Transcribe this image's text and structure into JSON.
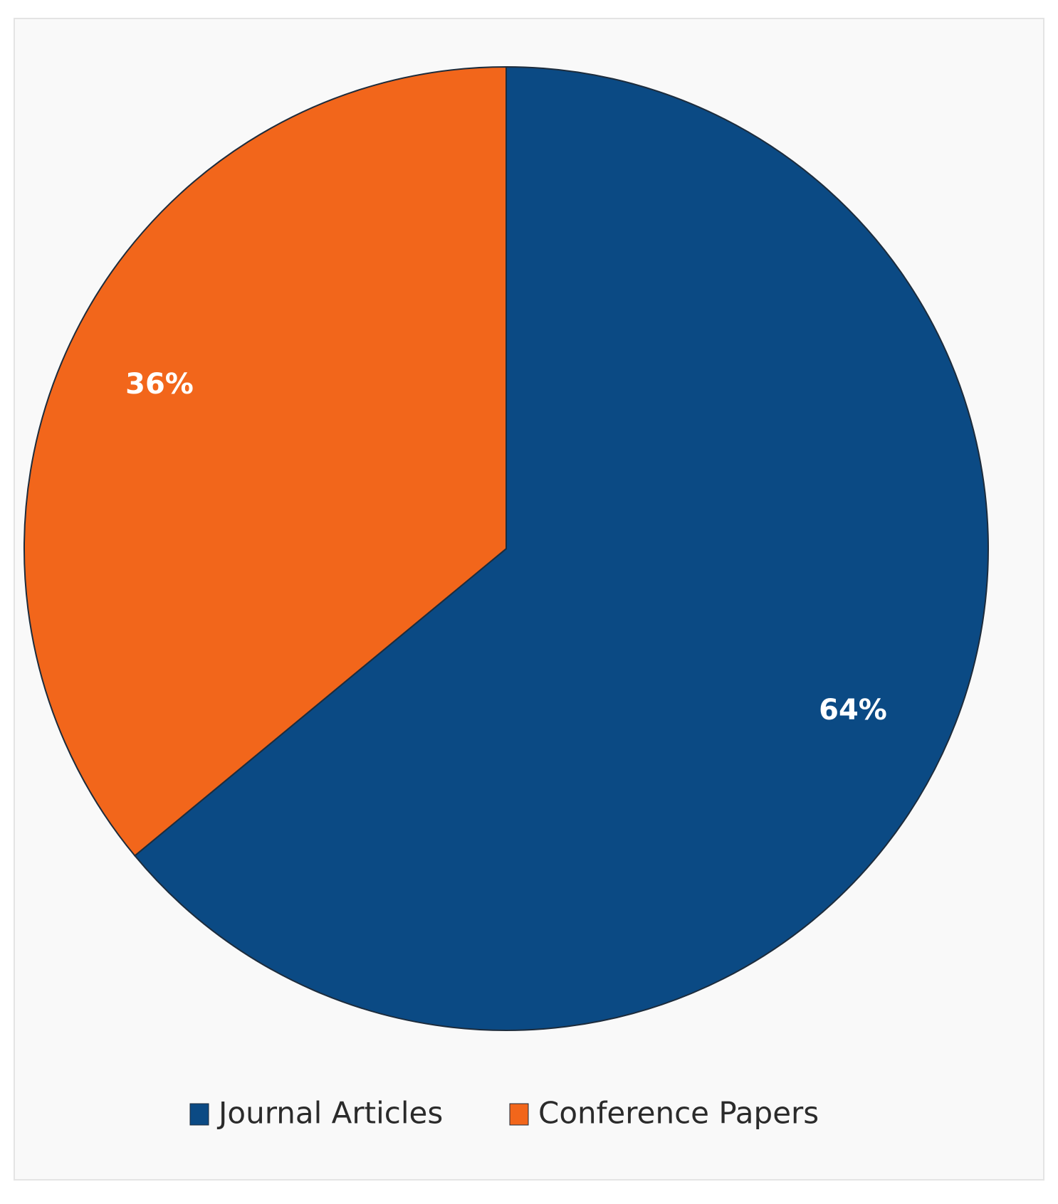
{
  "chart_data": {
    "type": "pie",
    "categories": [
      "Journal Articles",
      "Conference Papers"
    ],
    "values": [
      64,
      36
    ],
    "value_labels": [
      "64%",
      "36%"
    ],
    "colors": [
      "#0b4a84",
      "#f2661b"
    ],
    "legend": "bottom"
  }
}
